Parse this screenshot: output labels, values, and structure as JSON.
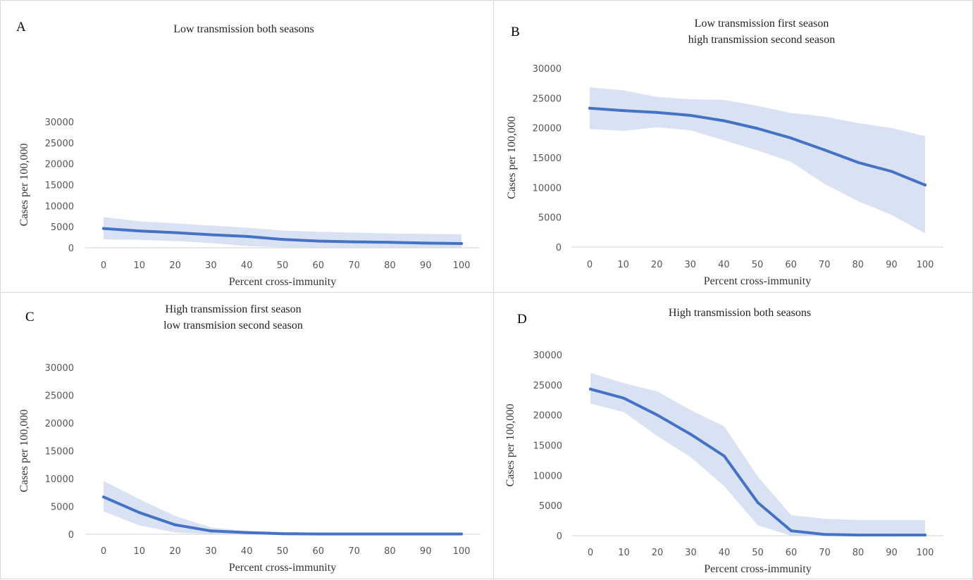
{
  "chart_data": [
    {
      "type": "line",
      "panel_label": "A",
      "title": [
        "Low transmission both seasons"
      ],
      "xlabel": "Percent cross-immunity",
      "ylabel": "Cases per 100,000",
      "x": [
        0,
        10,
        20,
        30,
        40,
        50,
        60,
        70,
        80,
        90,
        100
      ],
      "ylim": [
        0,
        30000
      ],
      "yticks": [
        0,
        5000,
        10000,
        15000,
        20000,
        25000,
        30000
      ],
      "series": [
        {
          "values": [
            4600,
            4000,
            3600,
            3100,
            2700,
            2000,
            1600,
            1400,
            1300,
            1100,
            1000
          ],
          "lower": [
            2000,
            1900,
            1600,
            1100,
            400,
            100,
            100,
            100,
            100,
            100,
            100
          ],
          "upper": [
            7300,
            6300,
            5800,
            5300,
            4800,
            4100,
            3800,
            3600,
            3400,
            3300,
            3200
          ]
        }
      ],
      "grid": false,
      "colors": {
        "line": "#4472c4",
        "band": "#d9e2f3"
      }
    },
    {
      "type": "line",
      "panel_label": "B",
      "title": [
        "Low transmission first season",
        "high transmission second season"
      ],
      "xlabel": "Percent cross-immunity",
      "ylabel": "Cases per 100,000",
      "x": [
        0,
        10,
        20,
        30,
        40,
        50,
        60,
        70,
        80,
        90,
        100
      ],
      "ylim": [
        0,
        30000
      ],
      "yticks": [
        0,
        5000,
        10000,
        15000,
        20000,
        25000,
        30000
      ],
      "series": [
        {
          "values": [
            23300,
            22900,
            22600,
            22100,
            21200,
            19900,
            18300,
            16300,
            14200,
            12700,
            10400
          ],
          "lower": [
            19800,
            19500,
            20100,
            19600,
            17900,
            16200,
            14300,
            10600,
            7700,
            5400,
            2300
          ],
          "upper": [
            26800,
            26300,
            25200,
            24800,
            24700,
            23700,
            22500,
            21900,
            20800,
            20000,
            18600
          ]
        }
      ],
      "grid": false,
      "colors": {
        "line": "#4472c4",
        "band": "#d9e2f3"
      }
    },
    {
      "type": "line",
      "panel_label": "C",
      "title": [
        "High transmission first season",
        "low transmision second season"
      ],
      "xlabel": "Percent cross-immunity",
      "ylabel": "Cases per 100,000",
      "x": [
        0,
        10,
        20,
        30,
        40,
        50,
        60,
        70,
        80,
        90,
        100
      ],
      "ylim": [
        0,
        30000
      ],
      "yticks": [
        0,
        5000,
        10000,
        15000,
        20000,
        25000,
        30000
      ],
      "series": [
        {
          "values": [
            6700,
            3900,
            1700,
            600,
            300,
            100,
            50,
            50,
            50,
            50,
            50
          ],
          "lower": [
            4100,
            1600,
            300,
            50,
            0,
            0,
            0,
            0,
            0,
            0,
            0
          ],
          "upper": [
            9600,
            6300,
            3300,
            1200,
            600,
            400,
            300,
            300,
            300,
            300,
            300
          ]
        }
      ],
      "grid": false,
      "colors": {
        "line": "#4472c4",
        "band": "#d9e2f3"
      }
    },
    {
      "type": "line",
      "panel_label": "D",
      "title": [
        "High transmission both seasons"
      ],
      "xlabel": "Percent cross-immunity",
      "ylabel": "Cases per 100,000",
      "x": [
        0,
        10,
        20,
        30,
        40,
        50,
        60,
        70,
        80,
        90,
        100
      ],
      "ylim": [
        0,
        30000
      ],
      "yticks": [
        0,
        5000,
        10000,
        15000,
        20000,
        25000,
        30000
      ],
      "series": [
        {
          "values": [
            24300,
            22800,
            20000,
            16800,
            13200,
            5500,
            800,
            200,
            100,
            100,
            100
          ],
          "lower": [
            21900,
            20500,
            16500,
            13000,
            8200,
            1700,
            0,
            0,
            0,
            0,
            0
          ],
          "upper": [
            27000,
            25300,
            23900,
            20800,
            18100,
            9800,
            3400,
            2800,
            2600,
            2600,
            2600
          ]
        }
      ],
      "grid": false,
      "colors": {
        "line": "#4472c4",
        "band": "#d9e2f3"
      }
    }
  ]
}
